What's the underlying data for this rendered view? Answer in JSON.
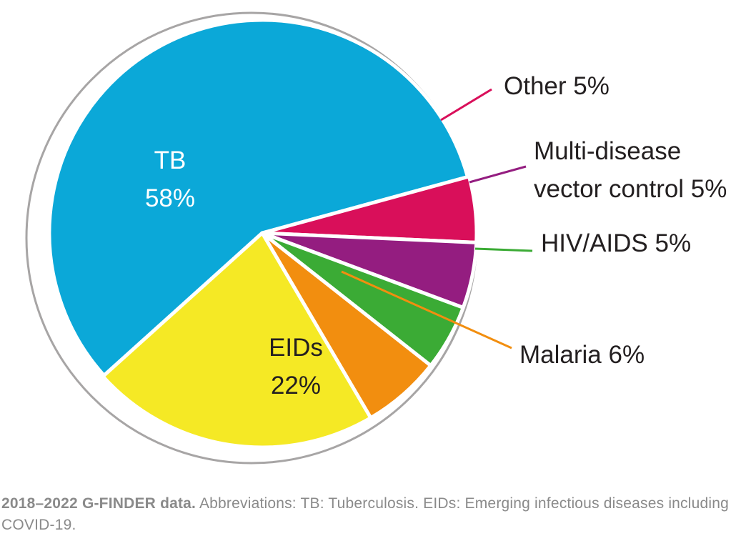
{
  "chart_data": {
    "type": "pie",
    "title": "",
    "slices": [
      {
        "name": "TB",
        "value": 58,
        "label": "TB",
        "value_label": "58%",
        "color": "#0ba8d8"
      },
      {
        "name": "Other",
        "value": 5,
        "label": "Other 5%",
        "color": "#d90f5a"
      },
      {
        "name": "Multi-disease vector control",
        "value": 5,
        "label_lines": [
          "Multi-disease",
          "vector control 5%"
        ],
        "color": "#941d80"
      },
      {
        "name": "HIV/AIDS",
        "value": 5,
        "label": "HIV/AIDS 5%",
        "color": "#3bab35"
      },
      {
        "name": "Malaria",
        "value": 6,
        "label": "Malaria 6%",
        "color": "#f28e0f"
      },
      {
        "name": "EIDs",
        "value": 22,
        "label": "EIDs",
        "value_label": "22%",
        "color": "#f5e925"
      }
    ],
    "outline_color": "#a7a5a5",
    "leader_colors": {
      "Other": "#d90f5a",
      "Multi-disease vector control": "#941d80",
      "HIV/AIDS": "#3bab35",
      "Malaria": "#f28e0f"
    }
  },
  "caption": {
    "bold": "2018–2022 G-FINDER data.",
    "text": " Abbreviations: TB: Tuberculosis. EIDs: Emerging infectious diseases including COVID-19."
  }
}
